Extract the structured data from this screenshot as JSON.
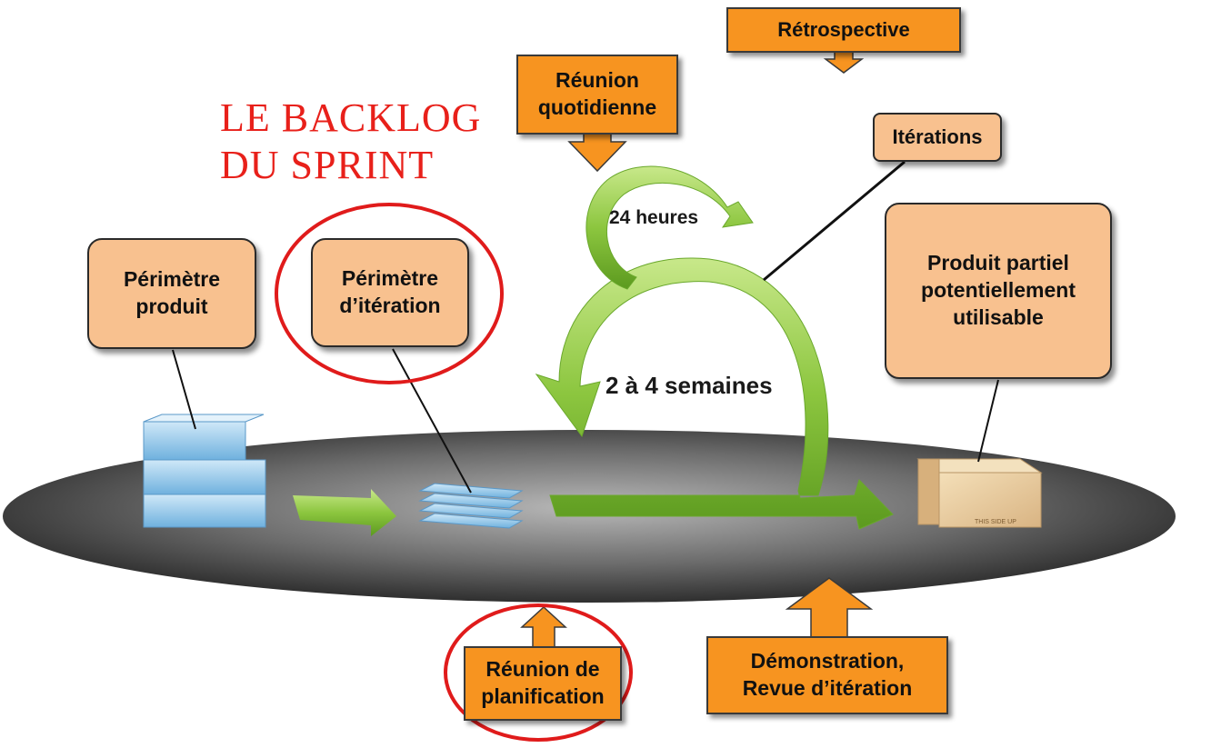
{
  "title": {
    "line1": "LE  BACKLOG",
    "line2": "DU  SPRINT"
  },
  "boxes": {
    "perimetre_produit": "Périmètre\nproduit",
    "perimetre_iteration": "Périmètre\nd’itération",
    "produit_partiel": "Produit partiel\npotentiellement\nutilisable"
  },
  "events": {
    "retrospective": "Rétrospective",
    "reunion_quotidienne": "Réunion\nquotidienne",
    "iterations": "Itérations",
    "reunion_planification": "Réunion de\nplanification",
    "demonstration": "Démonstration,\nRevue d’itération"
  },
  "cycles": {
    "daily": "24 heures",
    "sprint": "2 à 4 semaines"
  },
  "colors": {
    "title": "#e8201a",
    "orange": "#f79420",
    "tan": "#f8c18f",
    "green": "#8cc63f",
    "highlight_circle": "#e01b1b"
  }
}
